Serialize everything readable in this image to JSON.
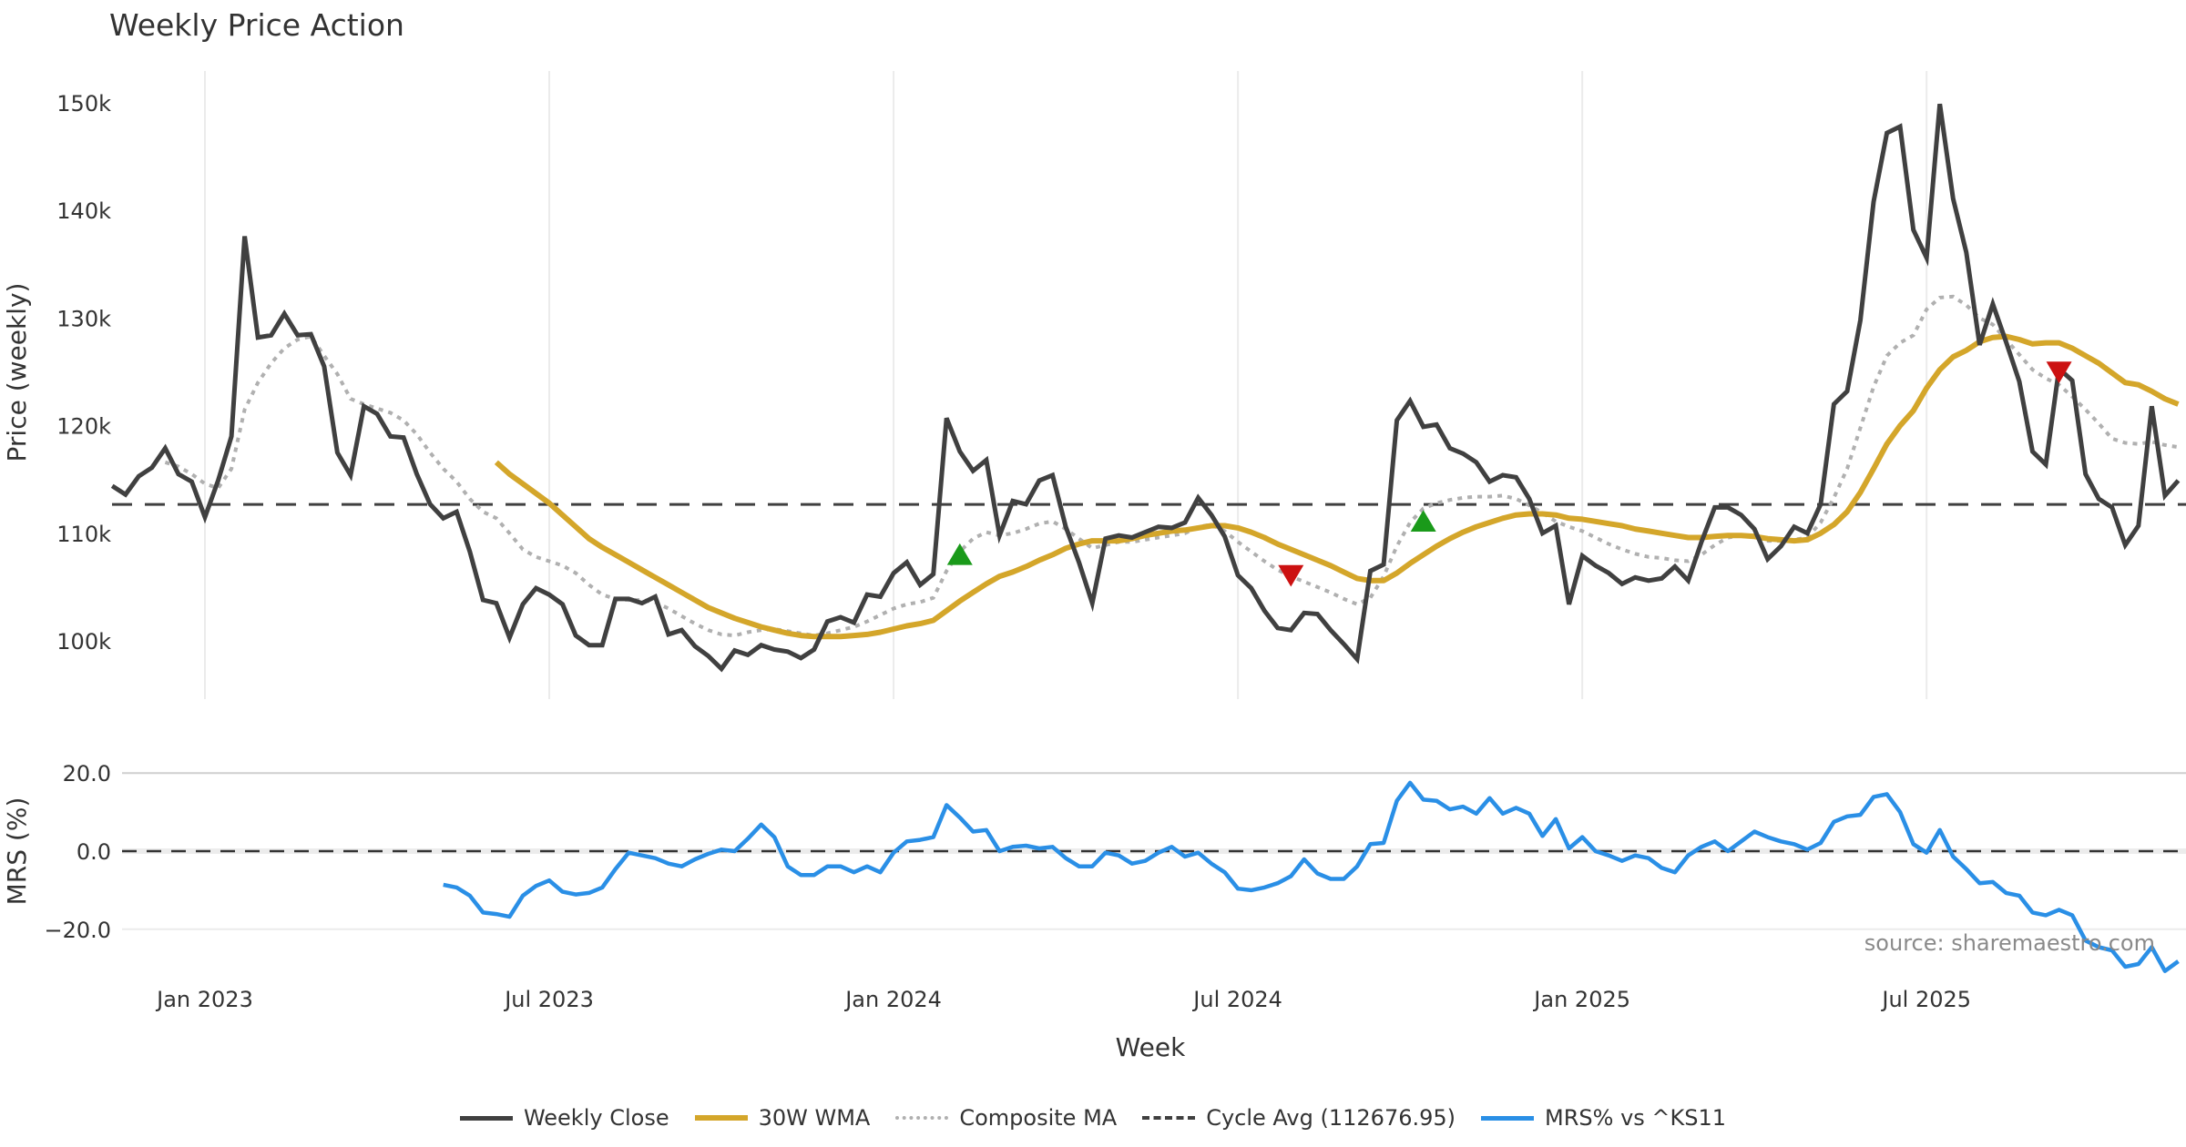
{
  "chart_data": {
    "type": "line",
    "title": "Weekly Price Action",
    "xlabel": "Week",
    "x_start_week": "2022-11-14",
    "x_tick_labels": [
      "Jan 2023",
      "Jul 2023",
      "Jan 2024",
      "Jul 2024",
      "Jan 2025",
      "Jul 2025"
    ],
    "x_tick_weeks": [
      0,
      26,
      52,
      78,
      104,
      130
    ],
    "week_offset_first_point": -7,
    "price_panel": {
      "ylabel": "Price (weekly)",
      "ylim": [
        94000,
        153000
      ],
      "y_ticks": [
        100000,
        110000,
        120000,
        130000,
        140000,
        150000
      ],
      "y_tick_labels": [
        "100k",
        "110k",
        "120k",
        "130k",
        "140k",
        "150k"
      ],
      "grid": "vertical",
      "series": [
        {
          "name": "Weekly Close",
          "color": "#404040",
          "start_week": -7,
          "values": [
            114.4,
            113.6,
            115.3,
            116.1,
            117.9,
            115.5,
            114.8,
            111.5,
            114.9,
            119.0,
            137.6,
            128.2,
            128.4,
            130.4,
            128.4,
            128.5,
            125.5,
            117.5,
            115.4,
            121.8,
            121.1,
            119.0,
            118.9,
            115.5,
            112.7,
            111.4,
            112.0,
            108.3,
            103.8,
            103.5,
            100.3,
            103.4,
            104.9,
            104.3,
            103.4,
            100.5,
            99.6,
            99.6,
            103.9,
            103.9,
            103.5,
            104.1,
            100.6,
            101.0,
            99.5,
            98.6,
            97.4,
            99.1,
            98.7,
            99.6,
            99.2,
            99.0,
            98.4,
            99.2,
            101.8,
            102.2,
            101.7,
            104.3,
            104.1,
            106.3,
            107.3,
            105.2,
            106.2,
            120.7,
            117.6,
            115.8,
            116.8,
            109.8,
            113.0,
            112.7,
            114.9,
            115.4,
            110.6,
            107.3,
            103.5,
            109.5,
            109.8,
            109.6,
            110.1,
            110.6,
            110.5,
            111.0,
            113.3,
            111.7,
            109.7,
            106.1,
            104.9,
            102.8,
            101.2,
            101.0,
            102.6,
            102.5,
            101.0,
            99.7,
            98.3,
            106.5,
            107.1,
            120.5,
            122.3,
            119.9,
            120.1,
            117.9,
            117.4,
            116.6,
            114.8,
            115.4,
            115.2,
            113.2,
            110.0,
            110.7,
            103.4,
            107.9,
            107.0,
            106.3,
            105.3,
            105.9,
            105.6,
            105.8,
            106.9,
            105.6,
            109.2,
            112.4,
            112.4,
            111.7,
            110.4,
            107.6,
            108.8,
            110.6,
            110.0,
            112.7,
            122.0,
            123.2,
            129.8,
            140.8,
            147.2,
            147.8,
            138.2,
            135.6,
            149.9,
            141.1,
            136.1,
            127.5,
            131.3,
            127.8,
            124.1,
            117.6,
            116.4,
            125.3,
            124.2,
            115.5,
            113.2,
            112.4,
            108.9,
            110.7,
            121.8,
            113.5,
            114.9
          ],
          "unit": "thousands"
        },
        {
          "name": "30W WMA",
          "color": "#D4A62A",
          "start_week": 22,
          "values": [
            116.6,
            115.5,
            114.6,
            113.7,
            112.8,
            111.7,
            110.6,
            109.5,
            108.7,
            108.0,
            107.3,
            106.6,
            105.9,
            105.2,
            104.5,
            103.8,
            103.1,
            102.6,
            102.1,
            101.7,
            101.3,
            101.0,
            100.7,
            100.5,
            100.4,
            100.4,
            100.4,
            100.5,
            100.6,
            100.8,
            101.1,
            101.4,
            101.6,
            101.9,
            102.8,
            103.7,
            104.5,
            105.3,
            106.0,
            106.4,
            106.9,
            107.5,
            108.0,
            108.6,
            109.0,
            109.3,
            109.3,
            109.3,
            109.5,
            109.8,
            110.0,
            110.2,
            110.3,
            110.5,
            110.7,
            110.7,
            110.5,
            110.1,
            109.6,
            109.0,
            108.5,
            108.0,
            107.5,
            107.0,
            106.4,
            105.8,
            105.6,
            105.6,
            106.3,
            107.2,
            108.0,
            108.8,
            109.5,
            110.1,
            110.6,
            111.0,
            111.4,
            111.7,
            111.8,
            111.8,
            111.7,
            111.4,
            111.3,
            111.1,
            110.9,
            110.7,
            110.4,
            110.2,
            110.0,
            109.8,
            109.6,
            109.6,
            109.7,
            109.8,
            109.8,
            109.7,
            109.5,
            109.4,
            109.3,
            109.4,
            110.0,
            110.8,
            112.0,
            113.8,
            116.0,
            118.3,
            120.0,
            121.4,
            123.5,
            125.2,
            126.4,
            127.0,
            127.8,
            128.2,
            128.3,
            128.0,
            127.6,
            127.7,
            127.7,
            127.2,
            126.5,
            125.8,
            124.9,
            124.0,
            123.8,
            123.2,
            122.5,
            122.0
          ],
          "unit": "thousands"
        },
        {
          "name": "Composite MA",
          "color": "#b0b0b0",
          "start_week": -3,
          "values": [
            116.6,
            116.2,
            115.5,
            114.6,
            114.2,
            116.0,
            121.5,
            124.0,
            125.8,
            127.2,
            128.0,
            128.3,
            126.5,
            124.8,
            122.5,
            122.0,
            121.6,
            121.2,
            120.5,
            119.2,
            117.5,
            116.0,
            114.8,
            113.2,
            112.0,
            111.4,
            110.0,
            108.5,
            107.8,
            107.4,
            107.0,
            106.3,
            105.2,
            104.3,
            103.9,
            103.8,
            103.8,
            103.6,
            103.0,
            102.3,
            101.6,
            101.0,
            100.6,
            100.5,
            100.8,
            101.0,
            101.1,
            100.9,
            100.7,
            100.5,
            100.7,
            101.0,
            101.3,
            101.8,
            102.4,
            103.0,
            103.4,
            103.6,
            104.0,
            106.5,
            108.3,
            109.5,
            110.1,
            109.8,
            110.0,
            110.4,
            110.9,
            111.1,
            110.4,
            109.5,
            108.6,
            108.9,
            109.2,
            109.2,
            109.4,
            109.6,
            109.8,
            110.0,
            110.6,
            110.8,
            110.2,
            109.2,
            108.3,
            107.4,
            106.6,
            106.0,
            105.5,
            105.0,
            104.5,
            103.9,
            103.4,
            104.0,
            106.0,
            108.8,
            111.0,
            112.3,
            112.8,
            113.1,
            113.3,
            113.4,
            113.4,
            113.5,
            113.2,
            112.6,
            111.9,
            111.1,
            110.6,
            110.2,
            109.6,
            109.0,
            108.5,
            108.1,
            107.8,
            107.7,
            107.5,
            107.4,
            108.0,
            108.9,
            109.6,
            109.8,
            109.6,
            109.3,
            109.3,
            109.4,
            109.6,
            111.0,
            113.3,
            116.0,
            119.8,
            123.6,
            126.5,
            127.7,
            128.4,
            130.8,
            131.9,
            132.0,
            131.2,
            130.0,
            129.4,
            128.0,
            126.6,
            125.2,
            124.4,
            123.8,
            122.7,
            121.5,
            120.2,
            118.8,
            118.4,
            118.3,
            118.5,
            118.2,
            118.0
          ],
          "unit": "thousands"
        },
        {
          "name": "Cycle Avg (112676.95)",
          "color": "#404040",
          "value": 112676.95
        }
      ],
      "markers": [
        {
          "type": "buy",
          "shape": "triangle-up",
          "color": "#1a9a1a",
          "week": 57,
          "value": 108.0
        },
        {
          "type": "sell",
          "shape": "triangle-down",
          "color": "#cc1111",
          "week": 82,
          "value": 106.1
        },
        {
          "type": "buy",
          "shape": "triangle-up",
          "color": "#1a9a1a",
          "week": 92,
          "value": 111.1
        },
        {
          "type": "sell",
          "shape": "triangle-down",
          "color": "#cc1111",
          "week": 140,
          "value": 125.0
        }
      ]
    },
    "mrs_panel": {
      "ylabel": "MRS (%)",
      "ylim": [
        -32,
        22
      ],
      "y_ticks": [
        20,
        0,
        -20
      ],
      "y_tick_labels": [
        "20.0",
        "0.0",
        "−20.0"
      ],
      "series": [
        {
          "name": "MRS% vs ^KS11",
          "color": "#2a8fe6",
          "start_week": 18,
          "values": [
            -8.6,
            -9.3,
            -11.4,
            -15.7,
            -16.1,
            -16.8,
            -11.4,
            -8.9,
            -7.5,
            -10.4,
            -11.1,
            -10.7,
            -9.3,
            -4.6,
            -0.4,
            -1.1,
            -1.8,
            -3.2,
            -3.9,
            -2.1,
            -0.7,
            0.4,
            0.0,
            3.2,
            6.8,
            3.6,
            -3.9,
            -6.1,
            -6.1,
            -3.9,
            -3.9,
            -5.4,
            -3.9,
            -5.4,
            -0.4,
            2.5,
            2.9,
            3.6,
            11.8,
            8.6,
            5.0,
            5.4,
            0.0,
            1.1,
            1.4,
            0.7,
            1.1,
            -1.8,
            -3.9,
            -3.9,
            -0.4,
            -1.1,
            -3.2,
            -2.5,
            -0.4,
            1.1,
            -1.4,
            -0.4,
            -3.2,
            -5.4,
            -9.6,
            -10.0,
            -9.3,
            -8.2,
            -6.4,
            -2.1,
            -5.7,
            -7.1,
            -7.1,
            -3.9,
            1.8,
            2.1,
            12.9,
            17.5,
            13.2,
            12.9,
            10.7,
            11.4,
            9.6,
            13.6,
            9.6,
            11.1,
            9.6,
            3.9,
            8.2,
            0.7,
            3.6,
            0.0,
            -1.1,
            -2.5,
            -1.1,
            -1.8,
            -4.3,
            -5.4,
            -1.1,
            1.1,
            2.5,
            0.0,
            2.5,
            5.0,
            3.6,
            2.5,
            1.8,
            0.4,
            2.1,
            7.5,
            8.9,
            9.3,
            13.9,
            14.6,
            10.0,
            1.8,
            -0.4,
            5.4,
            -1.4,
            -4.6,
            -8.2,
            -7.9,
            -10.7,
            -11.4,
            -15.7,
            -16.4,
            -15.0,
            -16.4,
            -22.9,
            -24.6,
            -25.4,
            -29.6,
            -28.9,
            -24.6,
            -30.7,
            -28.2
          ]
        }
      ],
      "zero_line": 0
    },
    "legend": {
      "placement": "bottom-center",
      "entries": [
        {
          "label": "Weekly Close",
          "color": "#404040",
          "style": "solid"
        },
        {
          "label": "30W WMA",
          "color": "#D4A62A",
          "style": "solid"
        },
        {
          "label": "Composite MA",
          "color": "#b0b0b0",
          "style": "dotted"
        },
        {
          "label": "Cycle Avg (112676.95)",
          "color": "#404040",
          "style": "dashed"
        },
        {
          "label": "MRS% vs ^KS11",
          "color": "#2a8fe6",
          "style": "solid"
        }
      ]
    },
    "source": "source: sharemaestro.com"
  }
}
